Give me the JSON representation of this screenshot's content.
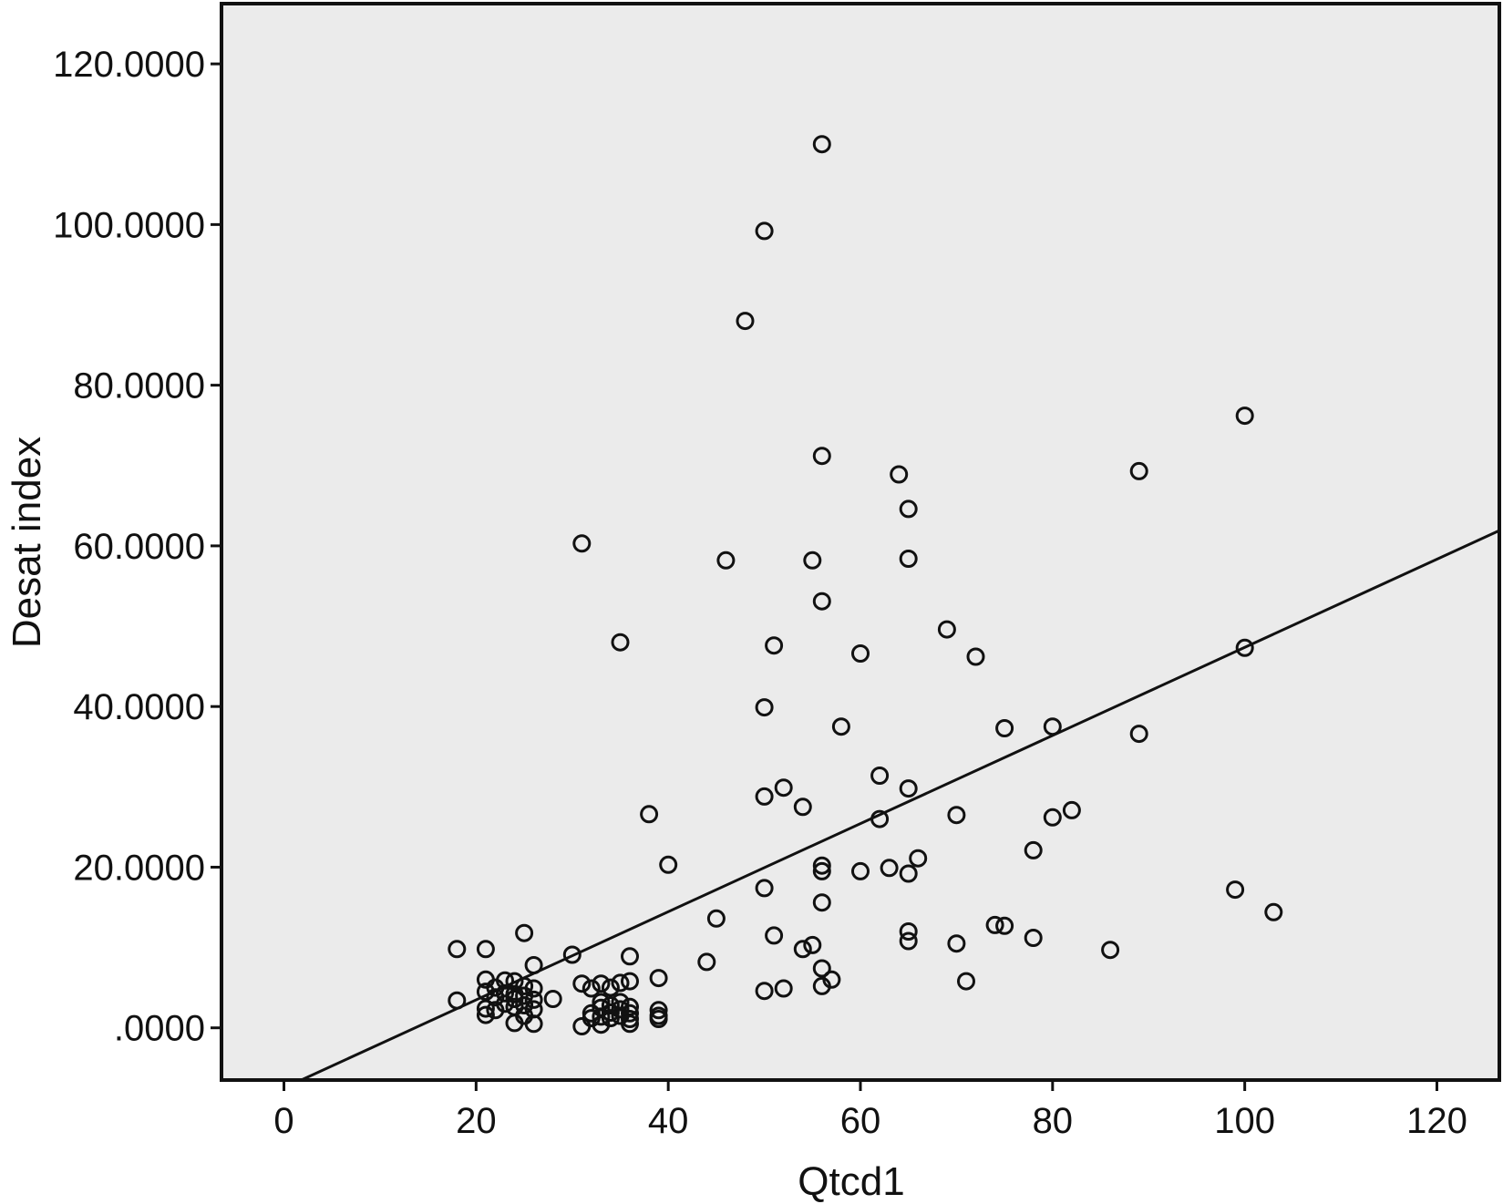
{
  "chart_data": {
    "type": "scatter",
    "title": "",
    "xlabel": "Qtcd1",
    "ylabel": "Desat index",
    "xlim": [
      -6.5,
      126.5
    ],
    "ylim": [
      -6.5,
      127.5
    ],
    "x_ticks": [
      0,
      20,
      40,
      60,
      80,
      100,
      120
    ],
    "x_tick_labels": [
      "0",
      "20",
      "40",
      "60",
      "80",
      "100",
      "120"
    ],
    "y_ticks": [
      0,
      20,
      40,
      60,
      80,
      100,
      120
    ],
    "y_tick_labels": [
      ".0000",
      "20.0000",
      "40.0000",
      "60.0000",
      "80.0000",
      "100.0000",
      "120.0000"
    ],
    "grid": false,
    "legend": "none",
    "colors": {
      "plot_background": "#ebebeb",
      "marker": "#111111",
      "line": "#111111"
    },
    "fit_line": {
      "type": "linear",
      "from": [
        1.8,
        -6.5
      ],
      "to": [
        126.5,
        61.9
      ]
    },
    "points": [
      [
        56,
        110
      ],
      [
        50,
        99.2
      ],
      [
        48,
        88
      ],
      [
        100,
        76.2
      ],
      [
        56,
        71.2
      ],
      [
        89,
        69.3
      ],
      [
        64,
        68.9
      ],
      [
        65,
        64.6
      ],
      [
        31,
        60.3
      ],
      [
        46,
        58.2
      ],
      [
        55,
        58.2
      ],
      [
        65,
        58.4
      ],
      [
        56,
        53.1
      ],
      [
        69,
        49.6
      ],
      [
        35,
        48
      ],
      [
        51,
        47.6
      ],
      [
        100,
        47.3
      ],
      [
        60,
        46.6
      ],
      [
        72,
        46.2
      ],
      [
        50,
        39.9
      ],
      [
        58,
        37.5
      ],
      [
        75,
        37.3
      ],
      [
        80,
        37.5
      ],
      [
        89,
        36.6
      ],
      [
        62,
        31.4
      ],
      [
        52,
        29.9
      ],
      [
        65,
        29.8
      ],
      [
        50,
        28.8
      ],
      [
        54,
        27.5
      ],
      [
        82,
        27.1
      ],
      [
        38,
        26.6
      ],
      [
        70,
        26.5
      ],
      [
        80,
        26.2
      ],
      [
        62,
        26
      ],
      [
        78,
        22.1
      ],
      [
        66,
        21.1
      ],
      [
        40,
        20.3
      ],
      [
        56,
        20.2
      ],
      [
        56,
        19.5
      ],
      [
        60,
        19.5
      ],
      [
        63,
        19.9
      ],
      [
        65,
        19.2
      ],
      [
        50,
        17.4
      ],
      [
        99,
        17.2
      ],
      [
        56,
        15.6
      ],
      [
        103,
        14.4
      ],
      [
        45,
        13.6
      ],
      [
        74,
        12.8
      ],
      [
        75,
        12.7
      ],
      [
        25,
        11.8
      ],
      [
        65,
        12
      ],
      [
        51,
        11.5
      ],
      [
        78,
        11.2
      ],
      [
        65,
        10.8
      ],
      [
        70,
        10.5
      ],
      [
        55,
        10.3
      ],
      [
        54,
        9.8
      ],
      [
        18,
        9.8
      ],
      [
        21,
        9.8
      ],
      [
        86,
        9.7
      ],
      [
        30,
        9.1
      ],
      [
        36,
        8.9
      ],
      [
        44,
        8.2
      ],
      [
        26,
        7.8
      ],
      [
        56,
        7.4
      ],
      [
        57,
        6
      ],
      [
        71,
        5.8
      ],
      [
        39,
        6.2
      ],
      [
        21,
        6
      ],
      [
        23,
        5.9
      ],
      [
        24,
        5.8
      ],
      [
        31,
        5.5
      ],
      [
        33,
        5.5
      ],
      [
        35,
        5.6
      ],
      [
        36,
        5.8
      ],
      [
        22,
        5
      ],
      [
        25,
        5.2
      ],
      [
        26,
        4.9
      ],
      [
        32,
        4.9
      ],
      [
        34,
        5
      ],
      [
        56,
        5.2
      ],
      [
        52,
        4.9
      ],
      [
        50,
        4.6
      ],
      [
        21,
        4.5
      ],
      [
        23,
        4.3
      ],
      [
        24,
        4.2
      ],
      [
        25,
        4
      ],
      [
        22,
        3.8
      ],
      [
        24,
        3.6
      ],
      [
        26,
        3.5
      ],
      [
        28,
        3.6
      ],
      [
        18,
        3.4
      ],
      [
        23,
        3
      ],
      [
        25,
        2.8
      ],
      [
        33,
        3.2
      ],
      [
        35,
        3.2
      ],
      [
        34,
        2.8
      ],
      [
        21,
        2.4
      ],
      [
        22,
        2.2
      ],
      [
        24,
        2.6
      ],
      [
        26,
        2.3
      ],
      [
        33,
        2.5
      ],
      [
        35,
        2.3
      ],
      [
        36,
        2.6
      ],
      [
        32,
        1.8
      ],
      [
        34,
        1.9
      ],
      [
        36,
        1.8
      ],
      [
        39,
        2.2
      ],
      [
        21,
        1.6
      ],
      [
        25,
        1.5
      ],
      [
        33,
        1.4
      ],
      [
        35,
        1.5
      ],
      [
        39,
        1.5
      ],
      [
        32,
        1.2
      ],
      [
        34,
        1.2
      ],
      [
        36,
        1.1
      ],
      [
        24,
        0.6
      ],
      [
        26,
        0.5
      ],
      [
        31,
        0.2
      ],
      [
        33,
        0.4
      ],
      [
        36,
        0.5
      ],
      [
        39,
        1.1
      ]
    ]
  }
}
